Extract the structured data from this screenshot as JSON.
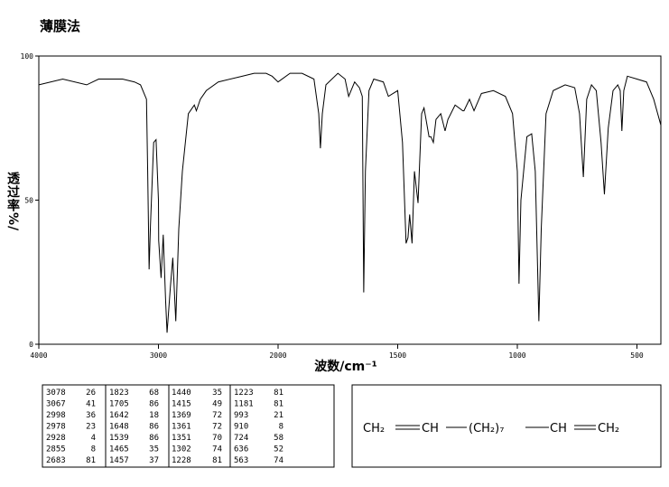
{
  "chart_data": {
    "type": "line",
    "title": "薄膜法",
    "x_label": "波数/cm⁻¹",
    "y_label": "透过率%/",
    "xlim": [
      4000,
      400
    ],
    "xticks": [
      4000,
      3000,
      2000,
      1500,
      1000,
      500
    ],
    "ylim": [
      0,
      100
    ],
    "yticks": [
      0,
      50,
      100
    ],
    "color": "#000000",
    "x": [
      4000,
      3800,
      3600,
      3500,
      3300,
      3200,
      3150,
      3100,
      3090,
      3078,
      3067,
      3040,
      3020,
      3000,
      2998,
      2978,
      2960,
      2940,
      2928,
      2900,
      2880,
      2855,
      2830,
      2800,
      2750,
      2700,
      2683,
      2650,
      2600,
      2500,
      2300,
      2200,
      2100,
      2050,
      2000,
      1950,
      1900,
      1850,
      1830,
      1823,
      1815,
      1800,
      1750,
      1720,
      1705,
      1680,
      1660,
      1648,
      1642,
      1635,
      1620,
      1600,
      1560,
      1539,
      1500,
      1480,
      1465,
      1457,
      1450,
      1440,
      1430,
      1415,
      1400,
      1390,
      1369,
      1361,
      1351,
      1340,
      1320,
      1302,
      1290,
      1260,
      1228,
      1223,
      1200,
      1181,
      1150,
      1100,
      1050,
      1020,
      1000,
      993,
      985,
      960,
      940,
      925,
      910,
      900,
      880,
      850,
      800,
      760,
      740,
      724,
      710,
      690,
      670,
      650,
      636,
      620,
      600,
      580,
      570,
      563,
      555,
      540,
      500,
      460,
      430,
      400
    ],
    "values": [
      90,
      92,
      90,
      92,
      92,
      91,
      90,
      85,
      60,
      26,
      41,
      70,
      71,
      50,
      36,
      23,
      38,
      15,
      4,
      20,
      30,
      8,
      40,
      60,
      80,
      83,
      81,
      85,
      88,
      91,
      93,
      94,
      94,
      93,
      91,
      94,
      94,
      92,
      80,
      68,
      80,
      90,
      94,
      92,
      86,
      91,
      89,
      86,
      18,
      60,
      88,
      92,
      91,
      86,
      88,
      70,
      35,
      37,
      45,
      35,
      60,
      49,
      80,
      82,
      72,
      72,
      70,
      78,
      80,
      74,
      78,
      83,
      81,
      81,
      85,
      81,
      87,
      88,
      86,
      80,
      60,
      21,
      50,
      72,
      73,
      60,
      8,
      40,
      80,
      88,
      90,
      89,
      80,
      58,
      85,
      90,
      88,
      70,
      52,
      75,
      88,
      90,
      88,
      74,
      88,
      93,
      92,
      91,
      85,
      76
    ]
  },
  "table": {
    "rows": [
      [
        3078,
        26,
        1823,
        68,
        1440,
        35,
        1223,
        81
      ],
      [
        3067,
        41,
        1705,
        86,
        1415,
        49,
        1181,
        81
      ],
      [
        2998,
        36,
        1642,
        18,
        1369,
        72,
        993,
        21
      ],
      [
        2978,
        23,
        1648,
        86,
        1361,
        72,
        910,
        8
      ],
      [
        2928,
        4,
        1539,
        86,
        1351,
        70,
        724,
        58
      ],
      [
        2855,
        8,
        1465,
        35,
        1302,
        74,
        636,
        52
      ],
      [
        2683,
        81,
        1457,
        37,
        1228,
        81,
        563,
        74
      ]
    ]
  },
  "structure": {
    "groups": [
      "CH₂",
      "CH",
      "(CH₂)₇",
      "CH",
      "CH₂"
    ]
  }
}
